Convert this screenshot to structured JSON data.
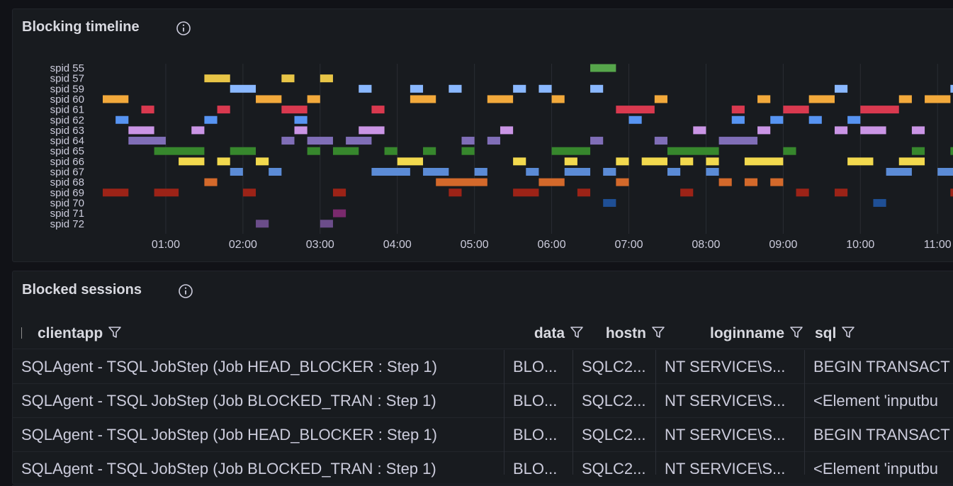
{
  "chart_data": {
    "type": "timeline",
    "title": "Blocking timeline",
    "xlim": [
      11,
      672
    ],
    "xticks": [
      {
        "value": 60,
        "label": "01:00"
      },
      {
        "value": 120,
        "label": "02:00"
      },
      {
        "value": 180,
        "label": "03:00"
      },
      {
        "value": 240,
        "label": "04:00"
      },
      {
        "value": 300,
        "label": "05:00"
      },
      {
        "value": 360,
        "label": "06:00"
      },
      {
        "value": 420,
        "label": "07:00"
      },
      {
        "value": 480,
        "label": "08:00"
      },
      {
        "value": 540,
        "label": "09:00"
      },
      {
        "value": 600,
        "label": "10:00"
      },
      {
        "value": 660,
        "label": "11:00"
      }
    ],
    "grid": true,
    "series": [
      {
        "name": "spid 55",
        "color": "#56a64b",
        "segments": [
          [
            390,
            410
          ]
        ]
      },
      {
        "name": "spid 57",
        "color": "#e8c547",
        "segments": [
          [
            90,
            110
          ],
          [
            150,
            160
          ],
          [
            180,
            190
          ]
        ]
      },
      {
        "name": "spid 59",
        "color": "#8ab8ff",
        "segments": [
          [
            110,
            130
          ],
          [
            210,
            220
          ],
          [
            250,
            260
          ],
          [
            280,
            290
          ],
          [
            330,
            340
          ],
          [
            350,
            360
          ],
          [
            390,
            400
          ],
          [
            580,
            590
          ],
          [
            670,
            680
          ]
        ]
      },
      {
        "name": "spid 60",
        "color": "#f2a93b",
        "segments": [
          [
            11,
            31
          ],
          [
            130,
            150
          ],
          [
            170,
            180
          ],
          [
            250,
            270
          ],
          [
            310,
            330
          ],
          [
            360,
            370
          ],
          [
            440,
            450
          ],
          [
            520,
            530
          ],
          [
            560,
            580
          ],
          [
            630,
            640
          ],
          [
            650,
            670
          ]
        ]
      },
      {
        "name": "spid 61",
        "color": "#d9394f",
        "segments": [
          [
            41,
            51
          ],
          [
            100,
            110
          ],
          [
            150,
            170
          ],
          [
            220,
            230
          ],
          [
            410,
            440
          ],
          [
            500,
            510
          ],
          [
            540,
            560
          ],
          [
            600,
            630
          ]
        ]
      },
      {
        "name": "spid 62",
        "color": "#5794f2",
        "segments": [
          [
            21,
            31
          ],
          [
            90,
            100
          ],
          [
            160,
            170
          ],
          [
            420,
            430
          ],
          [
            500,
            510
          ],
          [
            530,
            540
          ],
          [
            560,
            570
          ],
          [
            590,
            600
          ]
        ]
      },
      {
        "name": "spid 63",
        "color": "#ca95e5",
        "segments": [
          [
            31,
            51
          ],
          [
            80,
            90
          ],
          [
            160,
            170
          ],
          [
            210,
            230
          ],
          [
            320,
            330
          ],
          [
            470,
            480
          ],
          [
            520,
            530
          ],
          [
            580,
            590
          ],
          [
            600,
            620
          ],
          [
            640,
            650
          ]
        ]
      },
      {
        "name": "spid 64",
        "color": "#806eb7",
        "segments": [
          [
            31,
            60
          ],
          [
            150,
            160
          ],
          [
            170,
            190
          ],
          [
            200,
            220
          ],
          [
            290,
            300
          ],
          [
            310,
            320
          ],
          [
            390,
            400
          ],
          [
            440,
            450
          ],
          [
            490,
            520
          ]
        ]
      },
      {
        "name": "spid 65",
        "color": "#37872d",
        "segments": [
          [
            51,
            90
          ],
          [
            110,
            130
          ],
          [
            170,
            180
          ],
          [
            190,
            210
          ],
          [
            230,
            240
          ],
          [
            260,
            270
          ],
          [
            290,
            300
          ],
          [
            360,
            390
          ],
          [
            450,
            490
          ],
          [
            540,
            550
          ],
          [
            640,
            650
          ],
          [
            670,
            680
          ]
        ]
      },
      {
        "name": "spid 66",
        "color": "#f2d94e",
        "segments": [
          [
            70,
            90
          ],
          [
            100,
            110
          ],
          [
            130,
            140
          ],
          [
            240,
            260
          ],
          [
            330,
            340
          ],
          [
            370,
            380
          ],
          [
            410,
            420
          ],
          [
            430,
            450
          ],
          [
            460,
            470
          ],
          [
            480,
            490
          ],
          [
            510,
            540
          ],
          [
            590,
            610
          ],
          [
            630,
            650
          ]
        ]
      },
      {
        "name": "spid 67",
        "color": "#5b8bd6",
        "segments": [
          [
            110,
            120
          ],
          [
            140,
            150
          ],
          [
            220,
            250
          ],
          [
            260,
            280
          ],
          [
            300,
            310
          ],
          [
            340,
            350
          ],
          [
            370,
            390
          ],
          [
            400,
            410
          ],
          [
            450,
            460
          ],
          [
            480,
            490
          ],
          [
            620,
            640
          ],
          [
            660,
            680
          ]
        ]
      },
      {
        "name": "spid 68",
        "color": "#d3692b",
        "segments": [
          [
            90,
            100
          ],
          [
            270,
            310
          ],
          [
            350,
            370
          ],
          [
            410,
            420
          ],
          [
            490,
            500
          ],
          [
            510,
            520
          ],
          [
            530,
            540
          ]
        ]
      },
      {
        "name": "spid 69",
        "color": "#9c2317",
        "segments": [
          [
            11,
            31
          ],
          [
            51,
            70
          ],
          [
            120,
            130
          ],
          [
            190,
            200
          ],
          [
            280,
            290
          ],
          [
            330,
            350
          ],
          [
            380,
            390
          ],
          [
            460,
            470
          ],
          [
            550,
            560
          ],
          [
            580,
            590
          ],
          [
            670,
            680
          ]
        ]
      },
      {
        "name": "spid 70",
        "color": "#1f4f95",
        "segments": [
          [
            400,
            410
          ],
          [
            610,
            620
          ]
        ]
      },
      {
        "name": "spid 71",
        "color": "#7a2a6d",
        "segments": [
          [
            190,
            200
          ]
        ]
      },
      {
        "name": "spid 72",
        "color": "#6b4d8a",
        "segments": [
          [
            130,
            140
          ],
          [
            180,
            190
          ]
        ]
      }
    ]
  },
  "table": {
    "title": "Blocked sessions",
    "headers": [
      "clientapp",
      "data",
      "hostn",
      "loginname",
      "sql"
    ],
    "rows": [
      [
        "SQLAgent - TSQL JobStep (Job HEAD_BLOCKER : Step 1)",
        "BLO...",
        "SQLC2...",
        "NT SERVICE\\S...",
        "BEGIN TRANSACT"
      ],
      [
        "SQLAgent - TSQL JobStep (Job BLOCKED_TRAN : Step 1)",
        "BLO...",
        "SQLC2...",
        "NT SERVICE\\S...",
        "<Element 'inputbu"
      ],
      [
        "SQLAgent - TSQL JobStep (Job HEAD_BLOCKER : Step 1)",
        "BLO...",
        "SQLC2...",
        "NT SERVICE\\S...",
        "BEGIN TRANSACT"
      ],
      [
        "SQLAgent - TSQL JobStep (Job BLOCKED_TRAN : Step 1)",
        "BLO...",
        "SQLC2...",
        "NT SERVICE\\S...",
        "<Element 'inputbu"
      ]
    ]
  }
}
